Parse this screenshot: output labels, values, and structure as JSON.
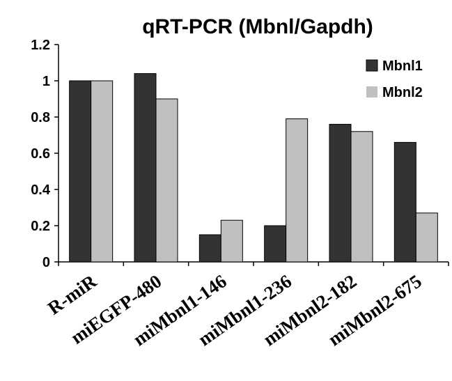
{
  "chart_data": {
    "type": "bar",
    "title": "qRT-PCR (Mbnl/Gapdh)",
    "xlabel": "",
    "ylabel": "",
    "categories": [
      "R-miR",
      "miEGFP-480",
      "miMbnl1-146",
      "miMbnl1-236",
      "miMbnl2-182",
      "miMbnl2-675"
    ],
    "series": [
      {
        "name": "Mbnl1",
        "color": "#333333",
        "values": [
          1.0,
          1.04,
          0.15,
          0.2,
          0.76,
          0.66
        ]
      },
      {
        "name": "Mbnl2",
        "color": "#c0c0c0",
        "values": [
          1.0,
          0.9,
          0.23,
          0.79,
          0.72,
          0.27
        ]
      }
    ],
    "ylim": [
      0,
      1.2
    ],
    "yticks": [
      "0",
      "0.2",
      "0.4",
      "0.6",
      "0.8",
      "1",
      "1.2"
    ],
    "grid": false,
    "legend_position": "top-right"
  }
}
